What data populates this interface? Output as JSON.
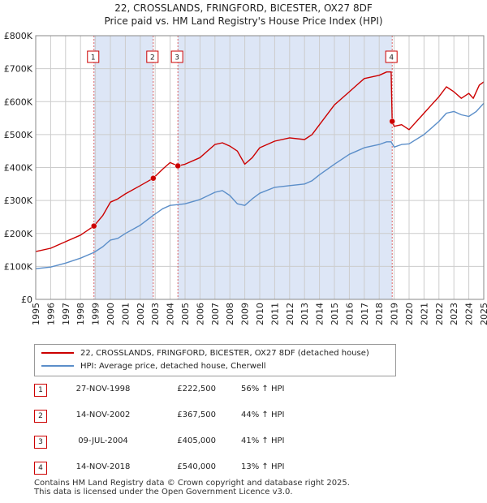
{
  "title_line1": "22, CROSSLANDS, FRINGFORD, BICESTER, OX27 8DF",
  "title_line2": "Price paid vs. HM Land Registry's House Price Index (HPI)",
  "colors": {
    "property": "#cc0000",
    "hpi": "#5b8ec9",
    "shade": "#dde6f6",
    "grid": "#cccccc",
    "marker": "#cc0000"
  },
  "chart_data": {
    "type": "line",
    "ylim": [
      0,
      800000
    ],
    "xlim": [
      1995,
      2025
    ],
    "yticks": [
      {
        "value": 0,
        "label": "£0"
      },
      {
        "value": 100000,
        "label": "£100K"
      },
      {
        "value": 200000,
        "label": "£200K"
      },
      {
        "value": 300000,
        "label": "£300K"
      },
      {
        "value": 400000,
        "label": "£400K"
      },
      {
        "value": 500000,
        "label": "£500K"
      },
      {
        "value": 600000,
        "label": "£600K"
      },
      {
        "value": 700000,
        "label": "£700K"
      },
      {
        "value": 800000,
        "label": "£800K"
      }
    ],
    "xticks": [
      "1995",
      "1996",
      "1997",
      "1998",
      "1999",
      "2000",
      "2001",
      "2002",
      "2003",
      "2004",
      "2005",
      "2006",
      "2007",
      "2008",
      "2009",
      "2010",
      "2011",
      "2012",
      "2013",
      "2014",
      "2015",
      "2016",
      "2017",
      "2018",
      "2019",
      "2020",
      "2021",
      "2022",
      "2023",
      "2024",
      "2025"
    ],
    "shaded_periods": [
      [
        1998.9,
        2002.87
      ],
      [
        2004.52,
        2018.87
      ]
    ],
    "series": [
      {
        "name": "22, CROSSLANDS, FRINGFORD, BICESTER, OX27 8DF (detached house)",
        "x": [
          1995,
          1996,
          1997,
          1998,
          1998.9,
          1999.5,
          2000,
          2000.5,
          2001,
          2002,
          2002.87,
          2003.5,
          2004,
          2004.52,
          2005,
          2006,
          2007,
          2007.5,
          2008,
          2008.5,
          2009,
          2009.5,
          2010,
          2011,
          2012,
          2013,
          2013.5,
          2014,
          2015,
          2016,
          2016.5,
          2017,
          2018,
          2018.5,
          2018.8,
          2018.87,
          2019,
          2019.5,
          2020,
          2021,
          2021.5,
          2022,
          2022.5,
          2023,
          2023.5,
          2024,
          2024.3,
          2024.7,
          2025
        ],
        "values": [
          145000,
          155000,
          175000,
          195000,
          222500,
          255000,
          295000,
          305000,
          320000,
          345000,
          367500,
          395000,
          415000,
          405000,
          410000,
          430000,
          470000,
          475000,
          465000,
          450000,
          410000,
          430000,
          460000,
          480000,
          490000,
          485000,
          500000,
          530000,
          590000,
          630000,
          650000,
          670000,
          680000,
          690000,
          690000,
          540000,
          525000,
          530000,
          515000,
          565000,
          590000,
          615000,
          645000,
          630000,
          610000,
          625000,
          610000,
          650000,
          660000
        ]
      },
      {
        "name": "HPI: Average price, detached house, Cherwell",
        "x": [
          1995,
          1996,
          1997,
          1998,
          1998.9,
          1999.5,
          2000,
          2000.5,
          2001,
          2002,
          2002.87,
          2003.5,
          2004,
          2004.52,
          2005,
          2006,
          2007,
          2007.5,
          2008,
          2008.5,
          2009,
          2009.5,
          2010,
          2011,
          2012,
          2013,
          2013.5,
          2014,
          2015,
          2016,
          2016.5,
          2017,
          2018,
          2018.5,
          2018.8,
          2019,
          2019.5,
          2020,
          2021,
          2021.5,
          2022,
          2022.5,
          2023,
          2023.5,
          2024,
          2024.5,
          2025
        ],
        "values": [
          93000,
          98000,
          110000,
          125000,
          142500,
          160000,
          180000,
          185000,
          200000,
          225000,
          255000,
          275000,
          285000,
          287500,
          290000,
          303000,
          325000,
          330000,
          315000,
          290000,
          285000,
          305000,
          322000,
          340000,
          345000,
          350000,
          360000,
          378000,
          410000,
          440000,
          450000,
          460000,
          470000,
          478000,
          478000,
          462000,
          470000,
          472000,
          500000,
          520000,
          540000,
          565000,
          570000,
          560000,
          555000,
          570000,
          595000
        ]
      }
    ],
    "transactions": [
      {
        "num": "1",
        "x": 1998.9,
        "y": 222500
      },
      {
        "num": "2",
        "x": 2002.87,
        "y": 367500
      },
      {
        "num": "3",
        "x": 2004.52,
        "y": 405000
      },
      {
        "num": "4",
        "x": 2018.87,
        "y": 540000
      }
    ]
  },
  "legend": {
    "property_label": "22, CROSSLANDS, FRINGFORD, BICESTER, OX27 8DF (detached house)",
    "hpi_label": "HPI: Average price, detached house, Cherwell"
  },
  "table": [
    {
      "num": "1",
      "date": "27-NOV-1998",
      "price": "£222,500",
      "hpi": "56% ↑ HPI"
    },
    {
      "num": "2",
      "date": "14-NOV-2002",
      "price": "£367,500",
      "hpi": "44% ↑ HPI"
    },
    {
      "num": "3",
      "date": "09-JUL-2004",
      "price": "£405,000",
      "hpi": "41% ↑ HPI"
    },
    {
      "num": "4",
      "date": "14-NOV-2018",
      "price": "£540,000",
      "hpi": "13% ↑ HPI"
    }
  ],
  "footer_line1": "Contains HM Land Registry data © Crown copyright and database right 2025.",
  "footer_line2": "This data is licensed under the Open Government Licence v3.0."
}
